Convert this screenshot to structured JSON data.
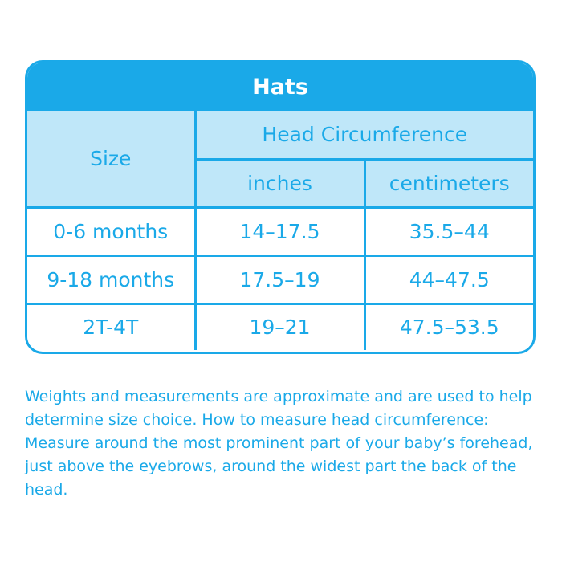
{
  "table": {
    "title": "Hats",
    "header": {
      "size": "Size",
      "group": "Head Circumference",
      "inches": "inches",
      "centimeters": "centimeters"
    },
    "rows": [
      {
        "size": "0-6 months",
        "inches": "14–17.5",
        "centimeters": "35.5–44"
      },
      {
        "size": "9-18 months",
        "inches": "17.5–19",
        "centimeters": "44–47.5"
      },
      {
        "size": "2T-4T",
        "inches": "19–21",
        "centimeters": "47.5–53.5"
      }
    ]
  },
  "note": "Weights and measurements are approximate and are used to help determine size choice. How to measure head circumference: Measure around the most prominent part of your baby’s forehead, just above the eyebrows, around the widest part the back of the head.",
  "colors": {
    "accent": "#1aa9e8",
    "header_fill": "#bfe7f9",
    "title_text": "#ffffff"
  }
}
